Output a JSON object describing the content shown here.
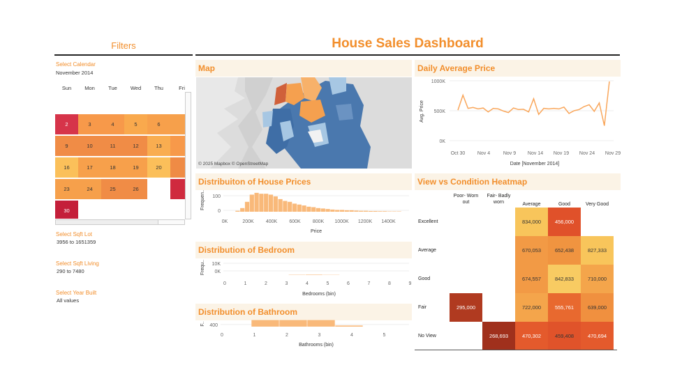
{
  "filters": {
    "title": "Filters",
    "calendar_label": "Select Calendar",
    "month": "November 2014",
    "weekdays": [
      "Sun",
      "Mon",
      "Tue",
      "Wed",
      "Thu",
      "Fri"
    ],
    "days": [
      {
        "day": "2",
        "color": "#d6344a"
      },
      {
        "day": "3",
        "color": "#f7994a"
      },
      {
        "day": "4",
        "color": "#f7994a"
      },
      {
        "day": "5",
        "color": "#f9a94d"
      },
      {
        "day": "6",
        "color": "#f7a04b"
      },
      {
        "day": "",
        "color": "#f6a04b"
      },
      {
        "day": "9",
        "color": "#f08c46"
      },
      {
        "day": "10",
        "color": "#f08c46"
      },
      {
        "day": "11",
        "color": "#f08c46"
      },
      {
        "day": "12",
        "color": "#f08c46"
      },
      {
        "day": "13",
        "color": "#f9ad50"
      },
      {
        "day": "",
        "color": "#f7994a"
      },
      {
        "day": "16",
        "color": "#fbc05a"
      },
      {
        "day": "17",
        "color": "#f7a04b"
      },
      {
        "day": "18",
        "color": "#f7a04b"
      },
      {
        "day": "19",
        "color": "#f7a04b"
      },
      {
        "day": "20",
        "color": "#fbbf5a"
      },
      {
        "day": "",
        "color": "#ef8b45"
      },
      {
        "day": "23",
        "color": "#f6a04b"
      },
      {
        "day": "24",
        "color": "#f6a04b"
      },
      {
        "day": "25",
        "color": "#f08c46"
      },
      {
        "day": "26",
        "color": "#f08c46"
      },
      {
        "day": "",
        "color": ""
      },
      {
        "day": "",
        "color": "#cf2a3e"
      },
      {
        "day": "30",
        "color": "#c41f3a"
      }
    ],
    "sqft_lot_label": "Select Sqft Lot",
    "sqft_lot_value": "3956 to 1651359",
    "sqft_living_label": "Select Sqft Living",
    "sqft_living_value": "290 to 7480",
    "year_built_label": "Select Year Built",
    "year_built_value": "All values"
  },
  "dashboard": {
    "title": "House Sales Dashboard"
  },
  "map": {
    "title": "Map",
    "credit": "© 2025 Mapbox © OpenStreetMap"
  },
  "colors": {
    "accent": "#f28e2b",
    "panel_bg": "#fbf3e6",
    "bar": "#f9b97a",
    "map_dark": "#4a78ae",
    "map_light": "#a7c7e3",
    "map_orange": "#f5a04f"
  },
  "charts": [
    {
      "id": "daily-average-price",
      "type": "line",
      "title": "Daily Average Price",
      "ylabel": "Avg. Price",
      "xlabel": "Date [November 2014]",
      "y_ticks": [
        "1000K",
        "500K",
        "0K"
      ],
      "x_ticks": [
        "Oct 30",
        "Nov 4",
        "Nov 9",
        "Nov 14",
        "Nov 19",
        "Nov 24",
        "Nov 29"
      ],
      "ylim": [
        0,
        1000000
      ],
      "values": [
        510000,
        760000,
        540000,
        555000,
        530000,
        545000,
        480000,
        540000,
        530000,
        495000,
        470000,
        545000,
        520000,
        525000,
        480000,
        700000,
        440000,
        540000,
        530000,
        540000,
        530000,
        560000,
        455000,
        500000,
        520000,
        570000,
        600000,
        490000,
        630000,
        250000,
        990000
      ]
    },
    {
      "id": "house-prices",
      "type": "bar",
      "title": "Distribuiton of House Prices",
      "ylabel": "Frequen..",
      "xlabel": "Price",
      "y_ticks": [
        "100",
        "0"
      ],
      "x_ticks": [
        "0K",
        "200K",
        "400K",
        "600K",
        "800K",
        "1000K",
        "1200K",
        "1400K"
      ],
      "ylim": [
        0,
        120
      ],
      "values": [
        5,
        20,
        55,
        95,
        105,
        100,
        100,
        95,
        85,
        70,
        60,
        55,
        45,
        40,
        35,
        28,
        25,
        20,
        18,
        15,
        12,
        10,
        10,
        8,
        8,
        6,
        5,
        5,
        4,
        4,
        3,
        3,
        2,
        2,
        2
      ]
    },
    {
      "id": "bedroom",
      "type": "bar",
      "title": "Distribution of Bedroom",
      "ylabel": "Frequ..",
      "xlabel": "Bedrooms (bin)",
      "y_ticks": [
        "10K",
        "0K"
      ],
      "x_ticks": [
        "0",
        "1",
        "2",
        "3",
        "4",
        "5",
        "6",
        "7",
        "8",
        "9"
      ],
      "ylim": [
        0,
        12000
      ],
      "values": [
        0,
        0,
        0,
        200,
        300,
        150,
        0,
        0,
        0
      ]
    },
    {
      "id": "bathroom",
      "type": "bar",
      "title": "Distribution of Bathroom",
      "ylabel": "F..",
      "xlabel": "Bathrooms (bin)",
      "y_ticks": [
        "400"
      ],
      "x_ticks": [
        "0",
        "1",
        "2",
        "3",
        "4",
        "5"
      ],
      "ylim": [
        0,
        500
      ],
      "values": [
        0,
        470,
        470,
        470,
        80,
        0
      ]
    }
  ],
  "heatmap": {
    "title": "View vs Condition Heatmap",
    "columns": [
      "Poor- Worn out",
      "Fair- Badly worn",
      "Average",
      "Good",
      "Very Good"
    ],
    "rows": [
      "Excellent",
      "Average",
      "Good",
      "Fair",
      "No View"
    ],
    "cells": [
      [
        {
          "v": "",
          "c": ""
        },
        {
          "v": "",
          "c": ""
        },
        {
          "v": "834,000",
          "c": "#f8c55b"
        },
        {
          "v": "456,000",
          "c": "#e0512a"
        },
        {
          "v": "",
          "c": ""
        }
      ],
      [
        {
          "v": "",
          "c": ""
        },
        {
          "v": "",
          "c": ""
        },
        {
          "v": "670,053",
          "c": "#f29a45"
        },
        {
          "v": "652,438",
          "c": "#f09440"
        },
        {
          "v": "827,333",
          "c": "#f8c55b"
        }
      ],
      [
        {
          "v": "",
          "c": ""
        },
        {
          "v": "",
          "c": ""
        },
        {
          "v": "674,557",
          "c": "#f29a45"
        },
        {
          "v": "842,833",
          "c": "#f8cb62"
        },
        {
          "v": "710,000",
          "c": "#f4a54b"
        }
      ],
      [
        {
          "v": "295,000",
          "c": "#b03a20"
        },
        {
          "v": "",
          "c": ""
        },
        {
          "v": "722,000",
          "c": "#f4a54b"
        },
        {
          "v": "555,761",
          "c": "#e8692f"
        },
        {
          "v": "639,000",
          "c": "#f0903f"
        }
      ],
      [
        {
          "v": "",
          "c": ""
        },
        {
          "v": "268,693",
          "c": "#a0301c"
        },
        {
          "v": "470,302",
          "c": "#e45a2c"
        },
        {
          "v": "459,408",
          "c": "#e0532a"
        },
        {
          "v": "470,694",
          "c": "#e45a2c"
        }
      ]
    ]
  }
}
